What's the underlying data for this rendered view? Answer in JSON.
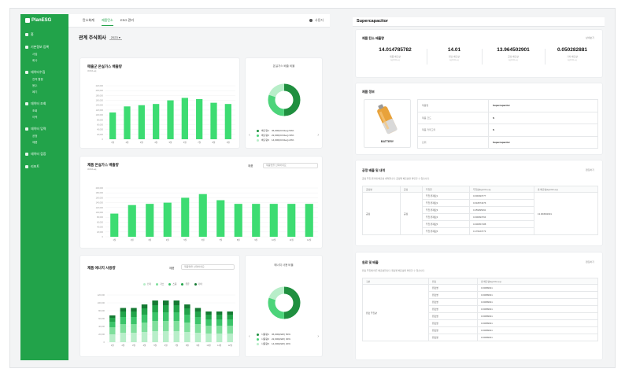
{
  "app": {
    "logo_text": "PlanESG"
  },
  "nav": {
    "items": [
      {
        "label": "홈",
        "subs": []
      },
      {
        "label": "기본정보 등록",
        "subs": [
          "사업",
          "회사"
        ]
      },
      {
        "label": "데이터수집",
        "subs": [
          "전력 활용",
          "용수",
          "폐기"
        ]
      },
      {
        "label": "데이터 조회",
        "subs": [
          "조회",
          "이력"
        ]
      },
      {
        "label": "데이터 입력",
        "subs": [
          "공정",
          "제품"
        ]
      },
      {
        "label": "데이터 검증",
        "subs": []
      },
      {
        "label": "리포트",
        "subs": []
      }
    ]
  },
  "topbar": {
    "tabs": [
      "탄소회계",
      "제품탄소",
      "ESG 관리"
    ],
    "active_tab": 1,
    "user": "사용자"
  },
  "page": {
    "title": "관계 주식회사",
    "year": "2023"
  },
  "chart1": {
    "title": "매출군 온실가스 배출량",
    "subtitle": "tCO2-eq",
    "chart_data": {
      "type": "bar",
      "categories": [
        "1월",
        "2월",
        "3월",
        "4월",
        "5월",
        "6월",
        "7월",
        "8월",
        "9월"
      ],
      "values": [
        110000,
        135000,
        140000,
        145000,
        160000,
        170000,
        165000,
        150000,
        145000
      ],
      "ylim": [
        0,
        220000
      ],
      "yticks": [
        "220,000",
        "200,000",
        "180,000",
        "160,000",
        "140,000",
        "120,000",
        "100,000",
        "80,000",
        "60,000",
        "40,000",
        "20,000",
        "0"
      ]
    }
  },
  "donut1": {
    "title": "온실가스 배출 비율",
    "legend": [
      {
        "label": "배출량1",
        "value": "36,000(tCO2eq) 50%",
        "color": "#1f8f3f"
      },
      {
        "label": "배출량2",
        "value": "22,000(tCO2eq) 30%",
        "color": "#4cd47a"
      },
      {
        "label": "배출량3",
        "value": "14,000(tCO2eq) 20%",
        "color": "#b8eec9"
      }
    ],
    "chart_data": {
      "type": "pie",
      "labels": [
        "배출량1",
        "배출량2",
        "배출량3"
      ],
      "values": [
        50,
        30,
        20
      ]
    }
  },
  "chart2": {
    "title": "제품 온실가스 배출량",
    "subtitle": "tCO2-eq",
    "select_label": "제품",
    "select_placeholder": "제품명을 선택하세요",
    "chart_data": {
      "type": "bar",
      "categories": [
        "1월",
        "2월",
        "3월",
        "4월",
        "5월",
        "6월",
        "7월",
        "8월",
        "9월",
        "10월",
        "11월",
        "12월"
      ],
      "values": [
        95000,
        130000,
        135000,
        140000,
        160000,
        175000,
        150000,
        135000,
        135000,
        135000,
        135000,
        135000
      ],
      "ylim": [
        0,
        200000
      ],
      "yticks": [
        "200,000",
        "180,000",
        "160,000",
        "140,000",
        "120,000",
        "100,000",
        "80,000",
        "60,000",
        "40,000",
        "20,000",
        "0"
      ]
    }
  },
  "chart3": {
    "title": "제품 에너지 사용량",
    "select_label": "제품",
    "select_placeholder": "제품명을 선택하세요",
    "legend": [
      {
        "label": "전기",
        "color": "#b8eec9"
      },
      {
        "label": "가스",
        "color": "#7fdf9c"
      },
      {
        "label": "스팀",
        "color": "#3cc46a"
      },
      {
        "label": "유류",
        "color": "#22a34a"
      },
      {
        "label": "기타",
        "color": "#157a33"
      }
    ],
    "chart_data": {
      "type": "bar",
      "stacked": true,
      "categories": [
        "1월",
        "2월",
        "3월",
        "4월",
        "5월",
        "6월",
        "7월",
        "8월",
        "9월",
        "10월",
        "11월",
        "12월"
      ],
      "series": [
        {
          "name": "전기",
          "values": [
            20000,
            24000,
            24000,
            26000,
            28000,
            28000,
            28000,
            26000,
            24000,
            22000,
            22000,
            22000
          ]
        },
        {
          "name": "가스",
          "values": [
            18000,
            22000,
            22000,
            24000,
            26000,
            26000,
            26000,
            24000,
            22000,
            20000,
            20000,
            20000
          ]
        },
        {
          "name": "스팀",
          "values": [
            14000,
            18000,
            18000,
            20000,
            22000,
            22000,
            22000,
            20000,
            18000,
            16000,
            16000,
            16000
          ]
        },
        {
          "name": "유류",
          "values": [
            10000,
            14000,
            14000,
            16000,
            18000,
            18000,
            18000,
            16000,
            14000,
            12000,
            12000,
            12000
          ]
        },
        {
          "name": "기타",
          "values": [
            6000,
            9000,
            9000,
            10000,
            12000,
            12000,
            12000,
            10000,
            9000,
            8000,
            8000,
            8000
          ]
        }
      ],
      "ylim": [
        0,
        120000
      ],
      "yticks": [
        "120,000",
        "100,000",
        "80,000",
        "60,000",
        "40,000",
        "20,000",
        "0"
      ]
    }
  },
  "donut2": {
    "title": "에너지 사용 비율",
    "legend": [
      {
        "label": "사용량1",
        "value": "36,000(kWh) 50%",
        "color": "#1f8f3f"
      },
      {
        "label": "사용량2",
        "value": "22,000(kWh) 30%",
        "color": "#4cd47a"
      },
      {
        "label": "사용량3",
        "value": "14,000(kWh) 20%",
        "color": "#b8eec9"
      }
    ],
    "chart_data": {
      "type": "pie",
      "labels": [
        "사용량1",
        "사용량2",
        "사용량3"
      ],
      "values": [
        50,
        30,
        20
      ]
    }
  },
  "detail": {
    "title": "Supercapacitor",
    "emission_card": {
      "title": "제품 탄소 배출량",
      "action": "상세보기",
      "metrics": [
        {
          "value": "14.014785782",
          "label": "제품 배출량",
          "unit": "kgCO2-eq"
        },
        {
          "value": "14.01",
          "label": "원료 배출량",
          "unit": "kgCO2-eq"
        },
        {
          "value": "13.964502901",
          "label": "공정 배출량",
          "unit": "kgCO2-eq"
        },
        {
          "value": "0.050282881",
          "label": "기타 배출량",
          "unit": "kgCO2-eq"
        }
      ]
    },
    "product_card": {
      "title": "제품 정보",
      "image_label": "BATTERY",
      "rows": [
        {
          "key": "제품명",
          "value": "Supercapacitor"
        },
        {
          "key": "제품 코드",
          "value": "S"
        },
        {
          "key": "제품 카테고리",
          "value": "S"
        },
        {
          "key": "단위",
          "value": "Supercapacitor"
        }
      ]
    },
    "process_card": {
      "title": "공정 배출 및 내역",
      "action": "편집하기",
      "description": "공정 투입 원자재 배출량 내역입니다. 공정별 배출량을 확인할 수 있습니다.",
      "headers": [
        "공정명",
        "공정",
        "투입물",
        "투입량(kgCO2-eq)",
        "총 배출량(kgCO2-eq)"
      ],
      "group": "공정",
      "subgroup": "공정",
      "items": [
        {
          "name": "투입 원재료1",
          "value": "0.000493777"
        },
        {
          "name": "투입 원재료2",
          "value": "0.018974376"
        },
        {
          "name": "투입 원재료3",
          "value": "0.459395491"
        },
        {
          "name": "투입 원재료4",
          "value": "0.000093764"
        },
        {
          "name": "투입 원재료5",
          "value": "0.000057188"
        },
        {
          "name": "투입 원재료6",
          "value": "0.170163773"
        }
      ],
      "total": "13.964502901"
    },
    "other_card": {
      "title": "원료 및 배출",
      "action": "편집하기",
      "description": "원료 투입에 따른 배출량입니다. 원료별 배출량을 확인할 수 있습니다.",
      "headers": [
        "구분",
        "원료",
        "총 배출량(kgCO2-eq)"
      ],
      "group": "원료 투입량",
      "items": [
        {
          "name": "원료명",
          "value": "0.00089641"
        },
        {
          "name": "원료명",
          "value": "0.00089641"
        },
        {
          "name": "원료명",
          "value": "0.00089641"
        },
        {
          "name": "원료명",
          "value": "0.00089641"
        },
        {
          "name": "원료명",
          "value": "0.00089641"
        },
        {
          "name": "원료명",
          "value": "0.00089641"
        },
        {
          "name": "원료명",
          "value": "0.00089641"
        },
        {
          "name": "원료명",
          "value": "0.00089641"
        }
      ]
    }
  }
}
